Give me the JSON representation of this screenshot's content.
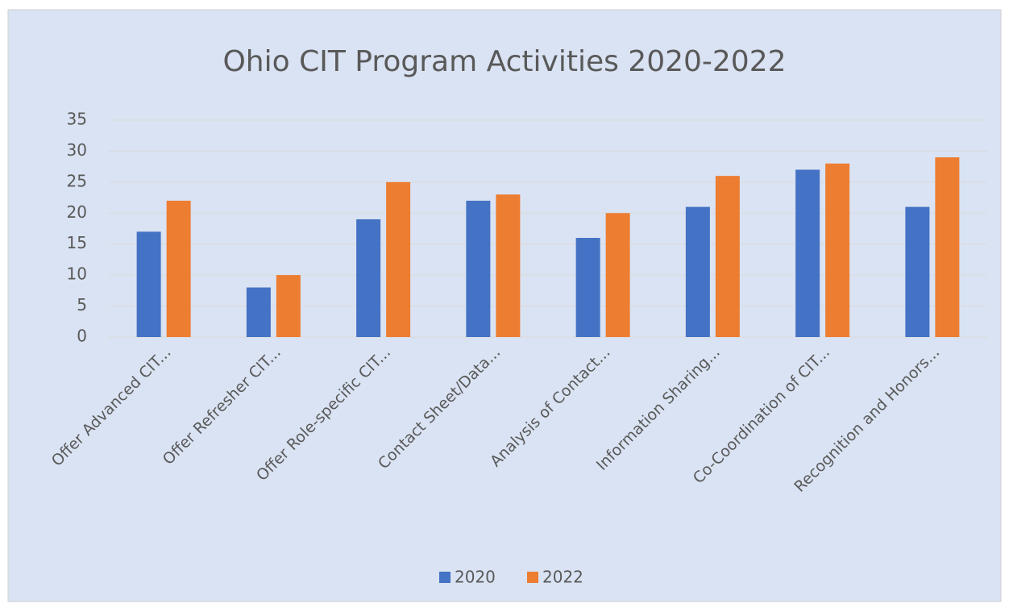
{
  "chart_data": {
    "type": "bar",
    "title": "Ohio CIT Program Activities 2020-2022",
    "categories": [
      "Offer Advanced CIT...",
      "Offer Refresher CIT...",
      "Offer Role-specific CIT...",
      "Contact Sheet/Data...",
      "Analysis of Contact...",
      "Information Sharing...",
      "Co-Coordination of CIT...",
      "Recognition and Honors..."
    ],
    "series": [
      {
        "name": "2020",
        "color": "#4472c4",
        "values": [
          17,
          8,
          19,
          22,
          16,
          21,
          27,
          21
        ]
      },
      {
        "name": "2022",
        "color": "#ed7d31",
        "values": [
          22,
          10,
          25,
          23,
          20,
          26,
          28,
          29
        ]
      }
    ],
    "ylim": [
      0,
      35
    ],
    "yticks": [
      0,
      5,
      10,
      15,
      20,
      25,
      30,
      35
    ],
    "grid": true,
    "legend": "bottom"
  }
}
